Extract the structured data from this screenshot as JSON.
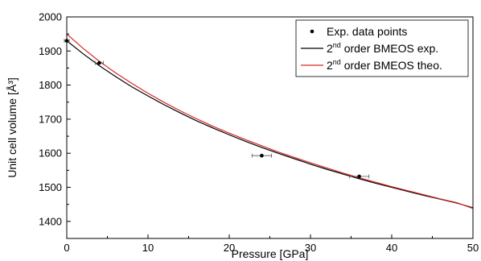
{
  "chart_data": {
    "type": "line",
    "xlabel": "Pressure [GPa]",
    "ylabel": "Unit cell volume [Å³]",
    "xlim": [
      0,
      50
    ],
    "ylim": [
      1350,
      2000
    ],
    "xticks": [
      0,
      10,
      20,
      30,
      40,
      50
    ],
    "yticks": [
      1400,
      1500,
      1600,
      1700,
      1800,
      1900,
      2000
    ],
    "xtick_labels": [
      "0",
      "10",
      "20",
      "30",
      "40",
      "50"
    ],
    "ytick_labels": [
      "1400",
      "1500",
      "1600",
      "1700",
      "1800",
      "1900",
      "2000"
    ],
    "grid": false,
    "legend_position": "top-right",
    "points": {
      "name": "Exp. data points",
      "color": "#000000",
      "x": [
        0,
        4,
        24,
        36
      ],
      "y": [
        1930,
        1865,
        1593,
        1532
      ],
      "xerr": [
        0.3,
        0.5,
        1.2,
        1.2
      ]
    },
    "series": [
      {
        "name_prefix": "2",
        "name_sup": "nd",
        "name_suffix": " order BMEOS exp.",
        "color": "#000000",
        "x": [
          0,
          2,
          4,
          6,
          8,
          10,
          12,
          14,
          16,
          18,
          20,
          22,
          24,
          26,
          28,
          30,
          32,
          34,
          36,
          38,
          40,
          42,
          44,
          46,
          48,
          50
        ],
        "y": [
          1930,
          1892,
          1857,
          1825,
          1795,
          1768,
          1742,
          1718,
          1695,
          1674,
          1654,
          1635,
          1617,
          1600,
          1584,
          1568,
          1553,
          1539,
          1525,
          1512,
          1500,
          1488,
          1476,
          1465,
          1454,
          1440
        ]
      },
      {
        "name_prefix": "2",
        "name_sup": "nd",
        "name_suffix": " order BMEOS theo.",
        "color": "#d62728",
        "x": [
          0,
          2,
          4,
          6,
          8,
          10,
          12,
          14,
          16,
          18,
          20,
          22,
          24,
          26,
          28,
          30,
          32,
          34,
          36,
          38,
          40,
          42,
          44,
          46,
          48,
          50
        ],
        "y": [
          1950,
          1908,
          1870,
          1836,
          1805,
          1776,
          1749,
          1724,
          1701,
          1679,
          1659,
          1640,
          1622,
          1604,
          1588,
          1572,
          1557,
          1542,
          1528,
          1515,
          1502,
          1490,
          1478,
          1466,
          1455,
          1438
        ]
      }
    ]
  }
}
